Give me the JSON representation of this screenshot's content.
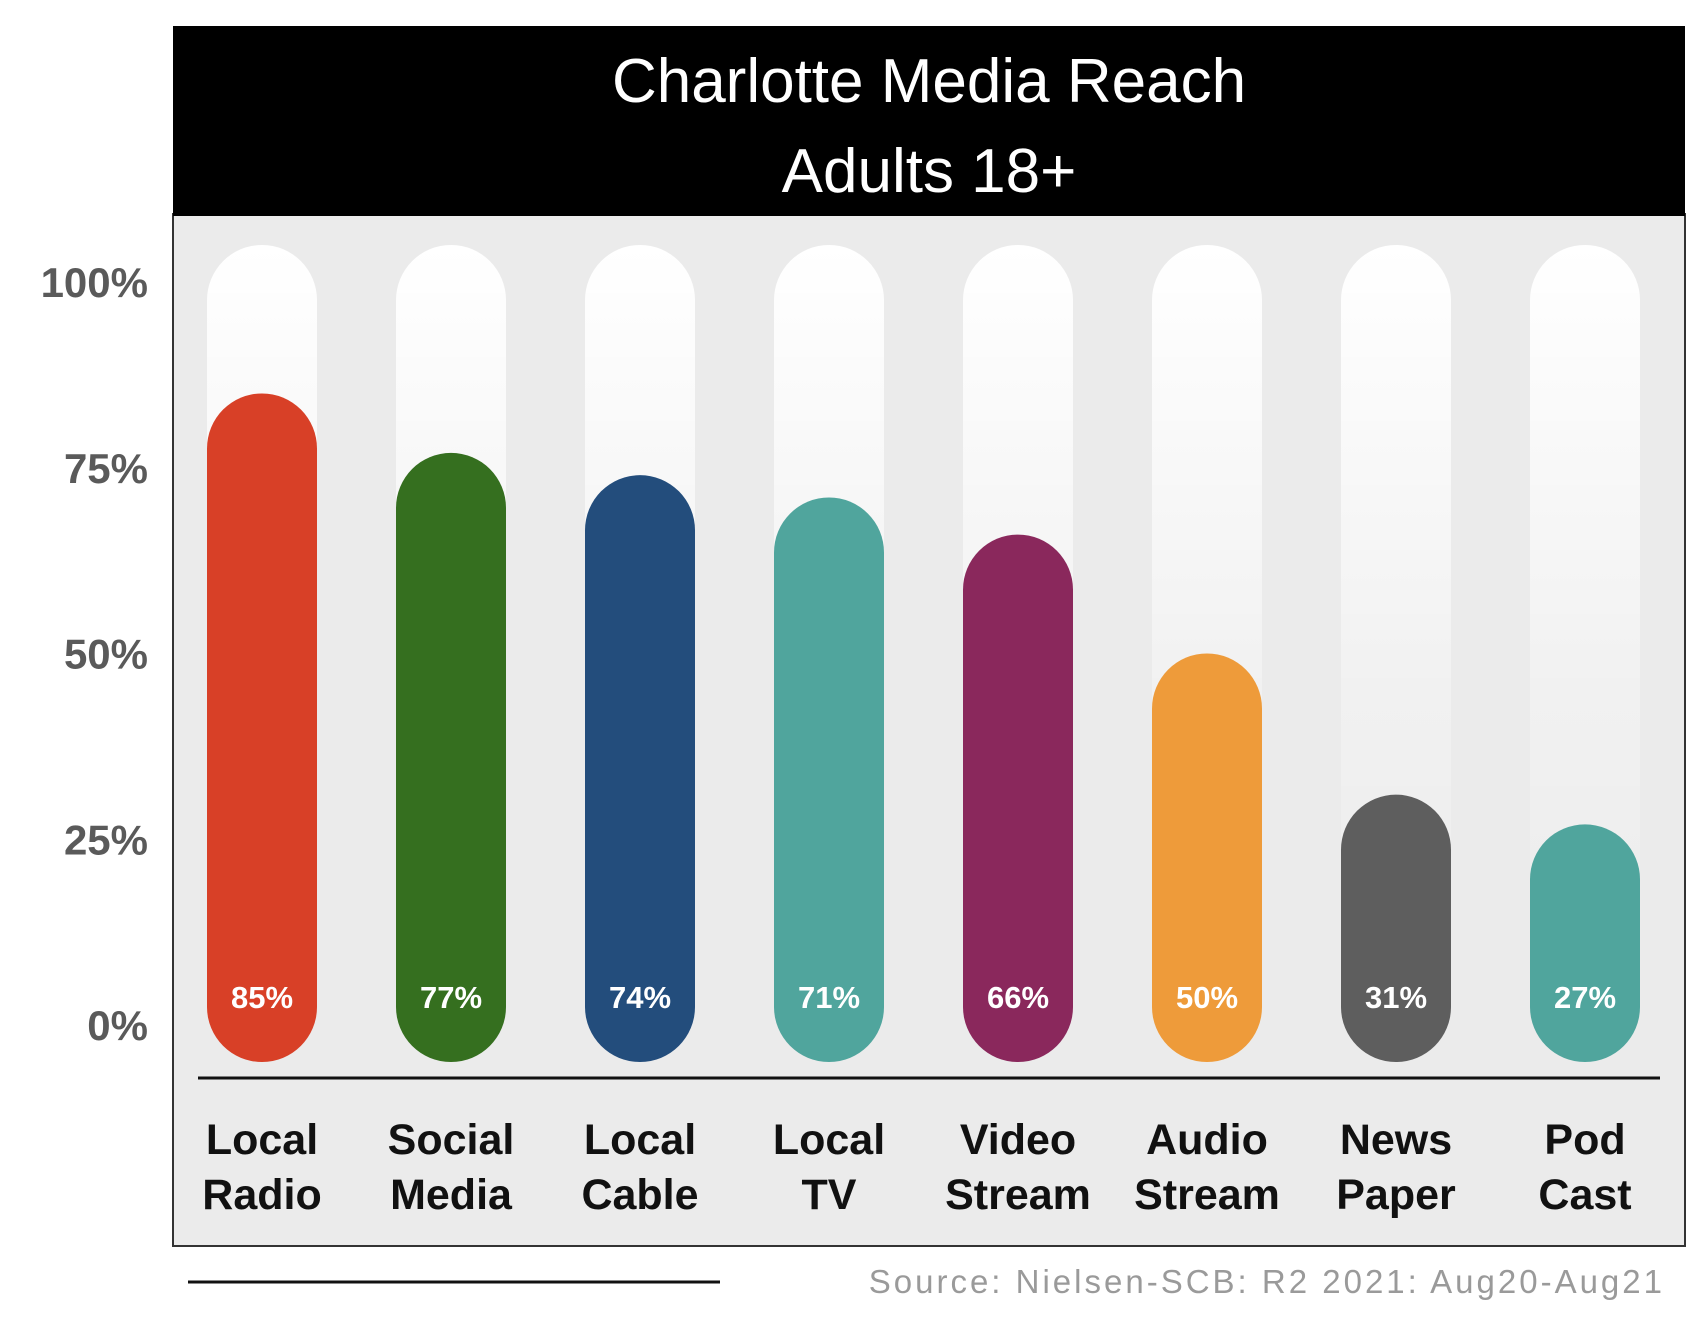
{
  "chart_data": {
    "type": "bar",
    "title_lines": [
      "Charlotte Media Reach",
      "Adults 18+"
    ],
    "categories": [
      [
        "Local",
        "Radio"
      ],
      [
        "Social",
        "Media"
      ],
      [
        "Local",
        "Cable"
      ],
      [
        "Local",
        "TV"
      ],
      [
        "Video",
        "Stream"
      ],
      [
        "Audio",
        "Stream"
      ],
      [
        "News",
        "Paper"
      ],
      [
        "Pod",
        "Cast"
      ]
    ],
    "values": [
      85,
      77,
      74,
      71,
      66,
      50,
      31,
      27
    ],
    "value_labels": [
      "85%",
      "77%",
      "74%",
      "71%",
      "66%",
      "50%",
      "31%",
      "27%"
    ],
    "colors": [
      "#d84027",
      "#356f1f",
      "#234d7c",
      "#50a59d",
      "#8a285c",
      "#ee9b3a",
      "#5e5e5e",
      "#50a59d"
    ],
    "yticks": [
      0,
      25,
      50,
      75,
      100
    ],
    "ytick_labels": [
      "0%",
      "25%",
      "50%",
      "75%",
      "100%"
    ],
    "ylim": [
      0,
      100
    ],
    "xlabel": "",
    "ylabel": "",
    "legend": "none",
    "grid": false,
    "source": "Source: Nielsen-SCB: R2 2021: Aug20-Aug21"
  }
}
